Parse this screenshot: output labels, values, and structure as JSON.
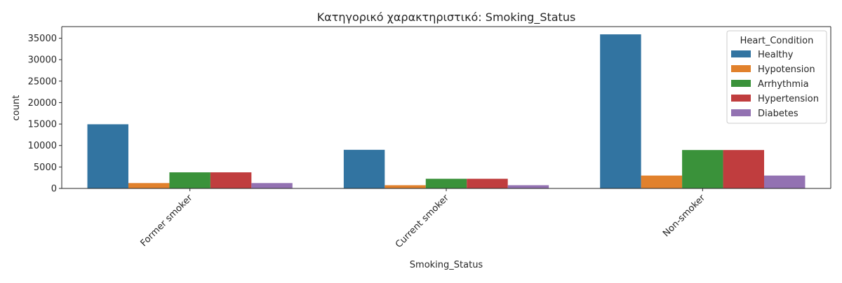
{
  "chart_data": {
    "type": "bar",
    "title": "Κατηγορικό χαρακτηριστικό: Smoking_Status",
    "xlabel": "Smoking_Status",
    "ylabel": "count",
    "categories": [
      "Former smoker",
      "Current smoker",
      "Non-smoker"
    ],
    "series": [
      {
        "name": "Healthy",
        "color": "#3274a1",
        "values": [
          14950,
          9000,
          35900
        ]
      },
      {
        "name": "Hypotension",
        "color": "#e1812c",
        "values": [
          1250,
          750,
          3000
        ]
      },
      {
        "name": "Arrhythmia",
        "color": "#3a923a",
        "values": [
          3750,
          2250,
          8950
        ]
      },
      {
        "name": "Hypertension",
        "color": "#c03d3e",
        "values": [
          3750,
          2250,
          8950
        ]
      },
      {
        "name": "Diabetes",
        "color": "#9372b2",
        "values": [
          1250,
          750,
          3000
        ]
      }
    ],
    "yticks": [
      0,
      5000,
      10000,
      15000,
      20000,
      25000,
      30000,
      35000
    ],
    "ylim": [
      0,
      37700
    ],
    "legend": {
      "title": "Heart_Condition",
      "placement": "top-right"
    },
    "grid": false,
    "xtick_rotation": "45"
  }
}
